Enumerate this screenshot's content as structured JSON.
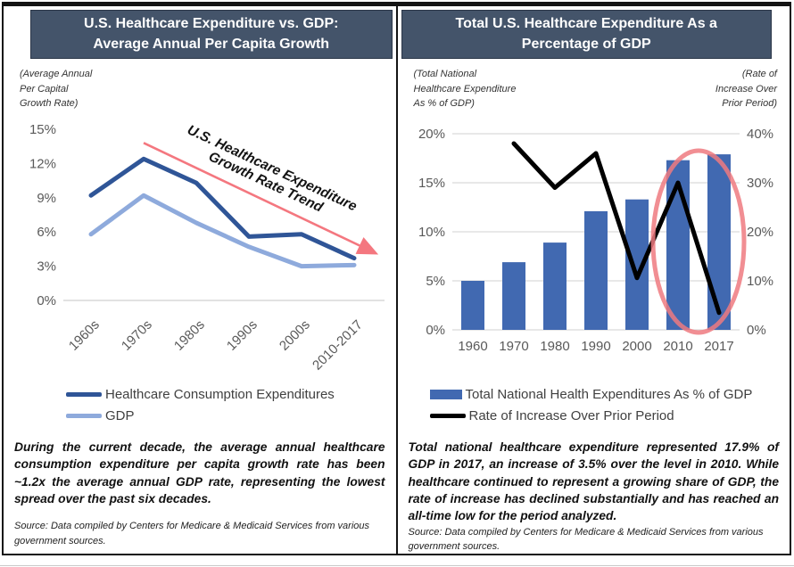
{
  "left_panel": {
    "header": {
      "line1": "U.S. Healthcare Expenditure vs. GDP:",
      "line2": "Average Annual Per Capita Growth"
    },
    "axis_note_lines": [
      "(Average Annual",
      "Per Capital",
      "Growth Rate)"
    ],
    "annotation_text": "During the current decade, the average annual healthcare consumption expenditure per capita growth rate has been ~1.2x the average annual GDP rate, representing the lowest spread over the past six decades.",
    "source_text": "Source: Data compiled by Centers for Medicare & Medicaid Services from various government sources."
  },
  "right_panel": {
    "header": {
      "line1": "Total U.S. Healthcare Expenditure As a",
      "line2": "Percentage of GDP"
    },
    "axis_note_left_lines": [
      "(Total National",
      "Healthcare Expenditure",
      "As % of GDP)"
    ],
    "axis_note_right_lines": [
      "(Rate of",
      "Increase Over",
      "Prior Period)"
    ],
    "annotation_text": "Total national healthcare expenditure represented 17.9% of GDP in 2017, an increase of 3.5% over the level in 2010.  While healthcare continued to represent a growing share of GDP, the rate of increase has declined substantially and has reached an all-time low for the period analyzed.",
    "source_text": "Source: Data compiled by Centers for Medicare & Medicaid Services from various government sources."
  },
  "chart_data": [
    {
      "type": "line",
      "title": "U.S. Healthcare Expenditure vs. GDP: Average Annual Per Capita Growth",
      "xlabel": "",
      "ylabel": "(Average Annual Per Capital Growth Rate)",
      "categories": [
        "1960s",
        "1970s",
        "1980s",
        "1990s",
        "2000s",
        "2010-2017"
      ],
      "series": [
        {
          "name": "Healthcare Consumption Expenditures",
          "color": "#2F5597",
          "values": [
            9.2,
            12.4,
            10.3,
            5.6,
            5.8,
            3.7
          ]
        },
        {
          "name": "GDP",
          "color": "#8EAADC",
          "values": [
            5.8,
            9.2,
            6.8,
            4.7,
            3.0,
            3.1
          ]
        }
      ],
      "ylim": [
        0,
        15
      ],
      "yticks": [
        0,
        3,
        6,
        9,
        12,
        15
      ],
      "ytick_suffix": "%",
      "grid": "baseline-only",
      "legend_position": "bottom-left",
      "annotation": {
        "label_line1": "U.S. Healthcare Expenditure",
        "label_line2": "Growth Rate Trend",
        "arrow_color": "#F4777F",
        "arrow_from": [
          1,
          13.8
        ],
        "arrow_to": [
          5.38,
          4.2
        ]
      }
    },
    {
      "type": "combo-bar-line",
      "title": "Total U.S. Healthcare Expenditure As a Percentage of GDP",
      "xlabel": "",
      "ylabel_left": "(Total National Healthcare Expenditure As % of GDP)",
      "ylabel_right": "(Rate of Increase Over Prior Period)",
      "categories": [
        "1960",
        "1970",
        "1980",
        "1990",
        "2000",
        "2010",
        "2017"
      ],
      "bar_series": {
        "name": "Total National Health Expenditures As % of GDP",
        "color": "#4169B1",
        "axis": "left",
        "values": [
          5.0,
          6.9,
          8.9,
          12.1,
          13.3,
          17.3,
          17.9
        ]
      },
      "line_series": {
        "name": "Rate of Increase Over Prior Period",
        "color": "#000000",
        "axis": "right",
        "values": [
          null,
          38,
          29,
          36,
          10.6,
          30,
          3.5
        ]
      },
      "left_ylim": [
        0,
        20
      ],
      "left_yticks": [
        0,
        5,
        10,
        15,
        20
      ],
      "right_ylim": [
        0,
        40
      ],
      "right_yticks": [
        0,
        10,
        20,
        30,
        40
      ],
      "ytick_suffix": "%",
      "grid": "horizontal",
      "legend_position": "bottom-left",
      "highlight": {
        "shape": "ellipse",
        "color": "#EE7A80",
        "categories": [
          "2010",
          "2017"
        ]
      }
    }
  ]
}
